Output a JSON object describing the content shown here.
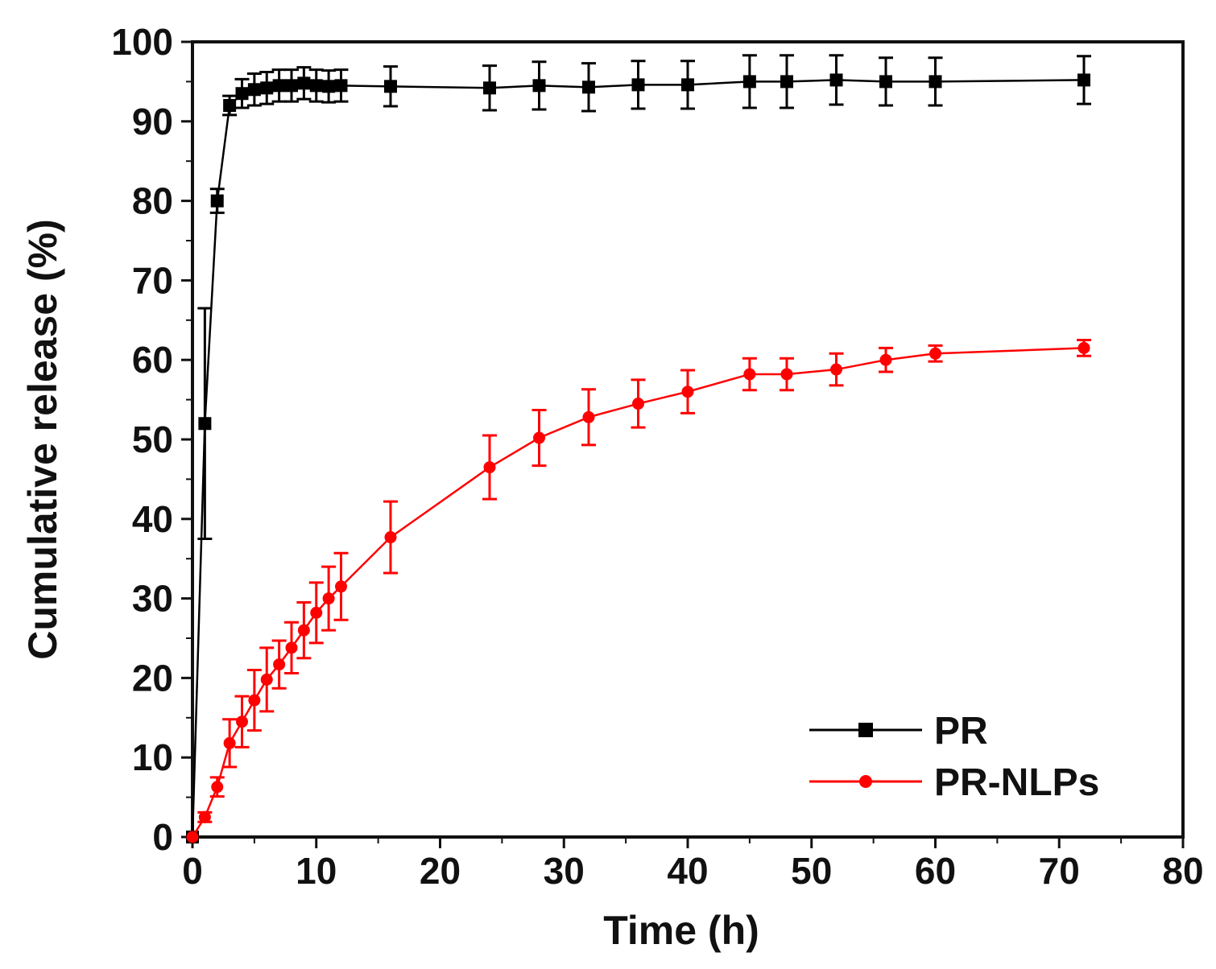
{
  "chart_data": {
    "type": "line",
    "title": "",
    "xlabel": "Time (h)",
    "ylabel": "Cumulative release (%)",
    "xlim": [
      0,
      80
    ],
    "ylim": [
      0,
      100
    ],
    "xticks": [
      0,
      10,
      20,
      30,
      40,
      50,
      60,
      70,
      80
    ],
    "yticks": [
      0,
      10,
      20,
      30,
      40,
      50,
      60,
      70,
      80,
      90,
      100
    ],
    "grid": false,
    "legend_position": "bottom-right",
    "series": [
      {
        "name": "PR",
        "color": "#000000",
        "marker": "square",
        "x": [
          0,
          1,
          2,
          3,
          4,
          5,
          6,
          7,
          8,
          9,
          10,
          11,
          12,
          16,
          24,
          28,
          32,
          36,
          40,
          45,
          48,
          52,
          56,
          60,
          72
        ],
        "y": [
          0,
          52,
          80,
          92,
          93.5,
          94,
          94.2,
          94.5,
          94.5,
          94.8,
          94.5,
          94.4,
          94.5,
          94.4,
          94.2,
          94.5,
          94.3,
          94.6,
          94.6,
          95,
          95,
          95.2,
          95,
          95,
          95.2
        ],
        "err": [
          0,
          14.5,
          1.5,
          1.2,
          1.8,
          2,
          2,
          2,
          2,
          2,
          2,
          2,
          2,
          2.5,
          2.8,
          3,
          3,
          3,
          3,
          3.3,
          3.3,
          3.1,
          3,
          3,
          3
        ]
      },
      {
        "name": "PR-NLPs",
        "color": "#ff0000",
        "marker": "circle",
        "x": [
          0,
          1,
          2,
          3,
          4,
          5,
          6,
          7,
          8,
          9,
          10,
          11,
          12,
          16,
          24,
          28,
          32,
          36,
          40,
          45,
          48,
          52,
          56,
          60,
          72
        ],
        "y": [
          0,
          2.5,
          6.3,
          11.8,
          14.5,
          17.2,
          19.8,
          21.7,
          23.8,
          26,
          28.2,
          30,
          31.5,
          37.7,
          46.5,
          50.2,
          52.8,
          54.5,
          56,
          58.2,
          58.2,
          58.8,
          60,
          60.8,
          61.5
        ],
        "err": [
          0,
          0.6,
          1.2,
          3,
          3.2,
          3.8,
          4,
          3,
          3.2,
          3.5,
          3.8,
          4,
          4.2,
          4.5,
          4,
          3.5,
          3.5,
          3,
          2.7,
          2,
          2,
          2,
          1.5,
          1,
          1
        ]
      }
    ]
  }
}
